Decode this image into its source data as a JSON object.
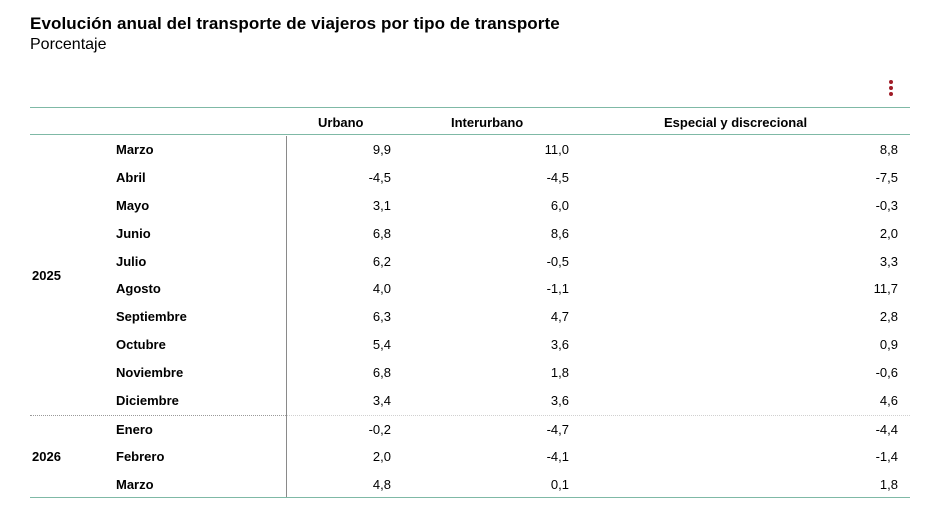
{
  "title": "Evolución anual del transporte de viajeros por tipo de transporte",
  "subtitle": "Porcentaje",
  "columns": [
    "Urbano",
    "Interurbano",
    "Especial y discrecional"
  ],
  "colors": {
    "rule": "#7fb9a6",
    "menu_icon": "#a01c27"
  },
  "menu_icon": "kebab-menu-icon",
  "chart_data": {
    "type": "table",
    "title": "Evolución anual del transporte de viajeros por tipo de transporte",
    "subtitle": "Porcentaje",
    "columns": [
      "Urbano",
      "Interurbano",
      "Especial y discrecional"
    ],
    "groups": [
      {
        "year": "2025",
        "rows": [
          {
            "month": "Marzo",
            "values": [
              "9,9",
              "11,0",
              "8,8"
            ]
          },
          {
            "month": "Abril",
            "values": [
              "-4,5",
              "-4,5",
              "-7,5"
            ]
          },
          {
            "month": "Mayo",
            "values": [
              "3,1",
              "6,0",
              "-0,3"
            ]
          },
          {
            "month": "Junio",
            "values": [
              "6,8",
              "8,6",
              "2,0"
            ]
          },
          {
            "month": "Julio",
            "values": [
              "6,2",
              "-0,5",
              "3,3"
            ]
          },
          {
            "month": "Agosto",
            "values": [
              "4,0",
              "-1,1",
              "11,7"
            ]
          },
          {
            "month": "Septiembre",
            "values": [
              "6,3",
              "4,7",
              "2,8"
            ]
          },
          {
            "month": "Octubre",
            "values": [
              "5,4",
              "3,6",
              "0,9"
            ]
          },
          {
            "month": "Noviembre",
            "values": [
              "6,8",
              "1,8",
              "-0,6"
            ]
          },
          {
            "month": "Diciembre",
            "values": [
              "3,4",
              "3,6",
              "4,6"
            ]
          }
        ]
      },
      {
        "year": "2026",
        "rows": [
          {
            "month": "Enero",
            "values": [
              "-0,2",
              "-4,7",
              "-4,4"
            ]
          },
          {
            "month": "Febrero",
            "values": [
              "2,0",
              "-4,1",
              "-1,4"
            ]
          },
          {
            "month": "Marzo",
            "values": [
              "4,8",
              "0,1",
              "1,8"
            ]
          }
        ]
      }
    ]
  }
}
